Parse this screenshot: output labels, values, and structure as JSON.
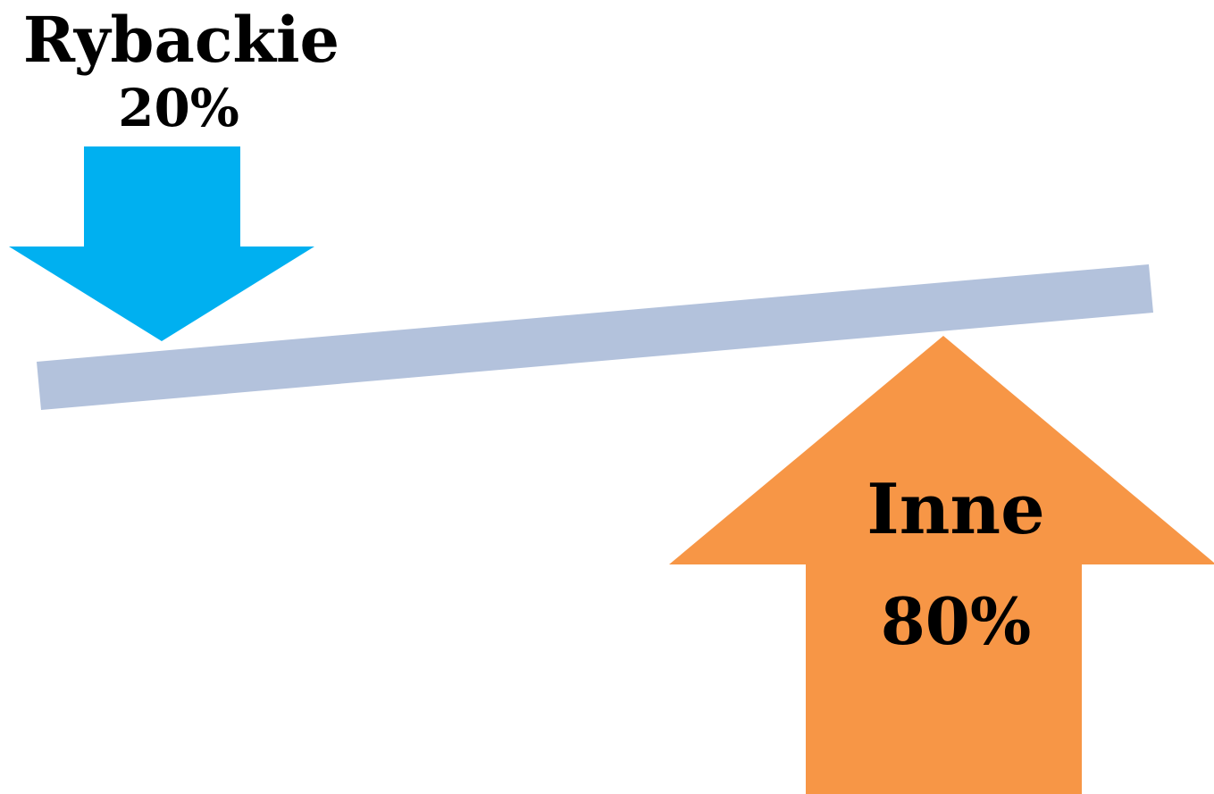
{
  "left_arrow": {
    "name": "Rybackie",
    "value": "20%",
    "color": "#00B0F0",
    "direction": "down"
  },
  "right_arrow": {
    "name": "Inne",
    "value": "80%",
    "color": "#F79646",
    "direction": "up"
  },
  "beam": {
    "color": "#B3C2DC"
  }
}
